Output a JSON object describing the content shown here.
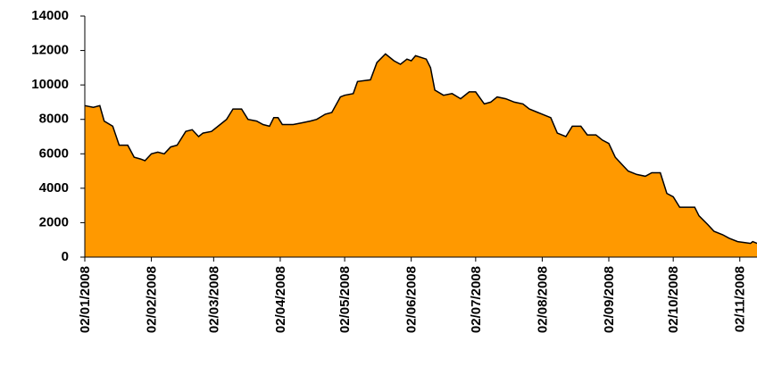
{
  "chart_data": {
    "type": "area",
    "color": "#ff9900",
    "line_color": "#000000",
    "x": [
      "02/01/2008",
      "06/01/2008",
      "09/01/2008",
      "11/01/2008",
      "15/01/2008",
      "18/01/2008",
      "22/01/2008",
      "25/01/2008",
      "28/01/2008",
      "30/01/2008",
      "02/02/2008",
      "05/02/2008",
      "08/02/2008",
      "11/02/2008",
      "14/02/2008",
      "18/02/2008",
      "21/02/2008",
      "24/02/2008",
      "26/02/2008",
      "01/03/2008",
      "05/03/2008",
      "08/03/2008",
      "11/03/2008",
      "15/03/2008",
      "18/03/2008",
      "22/03/2008",
      "25/03/2008",
      "28/03/2008",
      "30/03/2008",
      "01/04/2008",
      "03/04/2008",
      "08/04/2008",
      "12/04/2008",
      "16/04/2008",
      "19/04/2008",
      "23/04/2008",
      "26/04/2008",
      "30/04/2008",
      "02/05/2008",
      "06/05/2008",
      "08/05/2008",
      "14/05/2008",
      "17/05/2008",
      "21/05/2008",
      "25/05/2008",
      "28/05/2008",
      "31/05/2008",
      "02/06/2008",
      "04/06/2008",
      "09/06/2008",
      "11/06/2008",
      "13/06/2008",
      "17/06/2008",
      "21/06/2008",
      "25/06/2008",
      "29/06/2008",
      "02/07/2008",
      "06/07/2008",
      "09/07/2008",
      "12/07/2008",
      "16/07/2008",
      "20/07/2008",
      "24/07/2008",
      "27/07/2008",
      "31/07/2008",
      "02/08/2008",
      "06/08/2008",
      "09/08/2008",
      "13/08/2008",
      "16/08/2008",
      "20/08/2008",
      "23/08/2008",
      "27/08/2008",
      "30/08/2008",
      "02/09/2008",
      "05/09/2008",
      "08/09/2008",
      "11/09/2008",
      "15/09/2008",
      "19/09/2008",
      "22/09/2008",
      "26/09/2008",
      "29/09/2008",
      "02/10/2008",
      "05/10/2008",
      "09/10/2008",
      "12/10/2008",
      "14/10/2008",
      "18/10/2008",
      "21/10/2008",
      "25/10/2008",
      "28/10/2008",
      "01/11/2008",
      "04/11/2008",
      "07/11/2008",
      "08/11/2008",
      "10/11/2008"
    ],
    "values": [
      8800,
      8700,
      8800,
      7900,
      7600,
      6500,
      6500,
      5800,
      5700,
      5600,
      6000,
      6100,
      6000,
      6400,
      6500,
      7300,
      7400,
      7000,
      7200,
      7300,
      7700,
      8000,
      8600,
      8600,
      8000,
      7900,
      7700,
      7600,
      8100,
      8100,
      7700,
      7700,
      7800,
      7900,
      8000,
      8300,
      8400,
      9300,
      9400,
      9500,
      10200,
      10300,
      11300,
      11800,
      11400,
      11200,
      11500,
      11400,
      11700,
      11500,
      11000,
      9700,
      9400,
      9500,
      9200,
      9600,
      9600,
      8900,
      9000,
      9300,
      9200,
      9000,
      8900,
      8600,
      8400,
      8300,
      8100,
      7200,
      7000,
      7600,
      7600,
      7100,
      7100,
      6800,
      6600,
      5800,
      5400,
      5000,
      4800,
      4700,
      4900,
      4900,
      3700,
      3500,
      2900,
      2900,
      2900,
      2400,
      1900,
      1500,
      1300,
      1100,
      900,
      850,
      800,
      900,
      800
    ],
    "xlim": [
      "02/01/2008",
      "10/11/2008"
    ],
    "xticks": [
      "02/01/2008",
      "02/02/2008",
      "02/03/2008",
      "02/04/2008",
      "02/05/2008",
      "02/06/2008",
      "02/07/2008",
      "02/08/2008",
      "02/09/2008",
      "02/10/2008",
      "02/11/2008"
    ],
    "ylim": [
      0,
      14000
    ],
    "yticks": [
      0,
      2000,
      4000,
      6000,
      8000,
      10000,
      12000,
      14000
    ],
    "grid": false
  }
}
